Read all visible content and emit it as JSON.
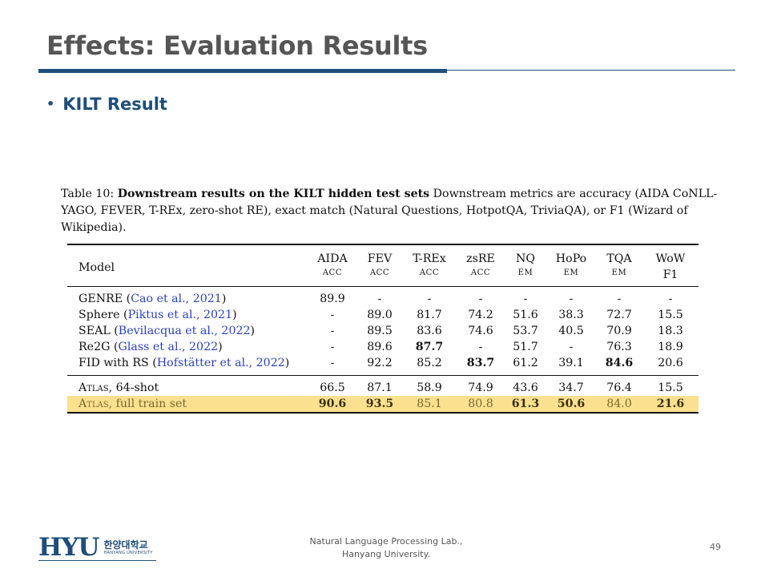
{
  "slide": {
    "title": "Effects: Evaluation Results",
    "bullet": "KILT Result",
    "page_number": "49",
    "footer": {
      "line1": "Natural Language Processing Lab.,",
      "line2": "Hanyang University."
    },
    "logo": {
      "text": "HYU",
      "korean": "한양대학교",
      "english": "HANYANG UNIVERSITY"
    }
  },
  "caption": {
    "label": "Table 10:",
    "bold": "Downstream results on the KILT hidden test sets",
    "rest": "Downstream metrics are accuracy (AIDA CoNLL-YAGO, FEVER, T-REx, zero-shot RE), exact match (Natural Questions, HotpotQA, TriviaQA), or F1 (Wizard of Wikipedia)."
  },
  "table": {
    "columns": [
      {
        "name": "AIDA",
        "metric": "ACC"
      },
      {
        "name": "FEV",
        "metric": "ACC"
      },
      {
        "name": "T-REx",
        "metric": "ACC"
      },
      {
        "name": "zsRE",
        "metric": "ACC"
      },
      {
        "name": "NQ",
        "metric": "EM"
      },
      {
        "name": "HoPo",
        "metric": "EM"
      },
      {
        "name": "TQA",
        "metric": "EM"
      },
      {
        "name": "WoW",
        "metric": "F1"
      }
    ],
    "model_header": "Model",
    "rows": [
      {
        "model": "GENRE",
        "cite": "Cao et al., 2021",
        "values": [
          "89.9",
          "-",
          "-",
          "-",
          "-",
          "-",
          "-",
          "-"
        ]
      },
      {
        "model": "Sphere",
        "cite": "Piktus et al., 2021",
        "values": [
          "-",
          "89.0",
          "81.7",
          "74.2",
          "51.6",
          "38.3",
          "72.7",
          "15.5"
        ]
      },
      {
        "model": "SEAL",
        "cite": "Bevilacqua et al., 2022",
        "values": [
          "-",
          "89.5",
          "83.6",
          "74.6",
          "53.7",
          "40.5",
          "70.9",
          "18.3"
        ]
      },
      {
        "model": "Re2G",
        "cite": "Glass et al., 2022",
        "values": [
          "-",
          "89.6",
          "87.7",
          "-",
          "51.7",
          "-",
          "76.3",
          "18.9"
        ]
      },
      {
        "model": "FID with RS",
        "cite": "Hofstätter et al., 2022",
        "values": [
          "-",
          "92.2",
          "85.2",
          "83.7",
          "61.2",
          "39.1",
          "84.6",
          "20.6"
        ]
      },
      {
        "model": "Atlas",
        "suffix": ", 64-shot",
        "values": [
          "66.5",
          "87.1",
          "58.9",
          "74.9",
          "43.6",
          "34.7",
          "76.4",
          "15.5"
        ]
      },
      {
        "model": "Atlas",
        "suffix": ", full train set",
        "values": [
          "90.6",
          "93.5",
          "85.1",
          "80.8",
          "61.3",
          "50.6",
          "84.0",
          "21.6"
        ]
      }
    ]
  },
  "colors": {
    "title": "#555555",
    "accent": "#1f4e79",
    "highlight": "#fbe08f",
    "citation": "#2b3fbf"
  }
}
